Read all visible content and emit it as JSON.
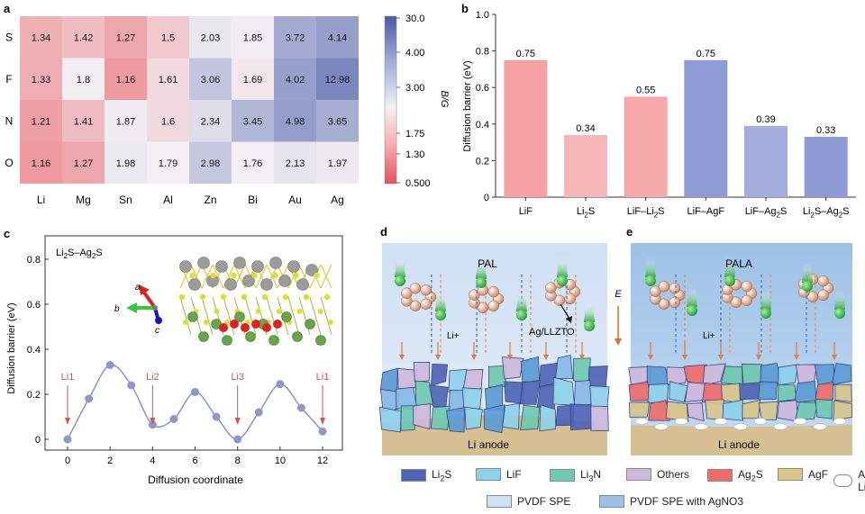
{
  "panels": {
    "a": {
      "letter": "a",
      "rows": [
        "S",
        "F",
        "N",
        "O"
      ],
      "cols": [
        "Li",
        "Mg",
        "Sn",
        "Al",
        "Zn",
        "Bi",
        "Au",
        "Ag"
      ],
      "values": [
        [
          "1.34",
          "1.42",
          "1.27",
          "1.5",
          "2.03",
          "1.85",
          "3.72",
          "4.14"
        ],
        [
          "1.33",
          "1.8",
          "1.16",
          "1.61",
          "3.06",
          "1.69",
          "4.02",
          "12.98"
        ],
        [
          "1.21",
          "1.41",
          "1.87",
          "1.6",
          "2.34",
          "3.45",
          "4.98",
          "3.65"
        ],
        [
          "1.16",
          "1.27",
          "1.98",
          "1.79",
          "2.98",
          "1.76",
          "2.13",
          "1.97"
        ]
      ],
      "colorbar_label": "B/G",
      "colorbar_ticks": [
        "30.0",
        "4.00",
        "3.00",
        "1.75",
        "1.30",
        "0.500"
      ],
      "colors": {
        "low": "#e8505b",
        "mid": "#f4f1f4",
        "high": "#4a5aa8"
      }
    },
    "b": {
      "letter": "b",
      "ylabel": "Diffusion barrier (eV)",
      "yticks": [
        "0",
        "0.2",
        "0.4",
        "0.6",
        "0.8",
        "1.0"
      ]
    },
    "c": {
      "letter": "c",
      "title": "Li2S–Ag2S",
      "xlabel": "Diffusion coordinate",
      "ylabel": "Diffusion barrier (eV)",
      "xticks": [
        "0",
        "2",
        "4",
        "6",
        "8",
        "10",
        "12"
      ],
      "yticks": [
        "0",
        "0.2",
        "0.4",
        "0.6",
        "0.8"
      ],
      "site_labels": [
        "Li1",
        "Li2",
        "Li3",
        "Li1"
      ],
      "axis_labels": {
        "a": "a",
        "b": "b",
        "c": "c"
      }
    },
    "d": {
      "letter": "d",
      "layer_label": "PAL",
      "field_label": "E",
      "li_label": "Li+",
      "particle_label": "Ag/LLZTO",
      "anode_label": "Li anode"
    },
    "e": {
      "letter": "e",
      "layer_label": "PALA",
      "li_label": "Li+",
      "anode_label": "Li anode"
    }
  },
  "chart_data": [
    {
      "type": "bar",
      "categories": [
        "LiF",
        "Li2S",
        "LiF–Li2S",
        "LiF–AgF",
        "LiF–Ag2S",
        "Li2S–Ag2S"
      ],
      "values": [
        0.75,
        0.34,
        0.55,
        0.75,
        0.39,
        0.33
      ],
      "value_labels": [
        "0.75",
        "0.34",
        "0.55",
        "0.75",
        "0.39",
        "0.33"
      ],
      "colors": [
        "#f6a1a3",
        "#f6b7b9",
        "#f5aaa9",
        "#8e9bd5",
        "#a4addb",
        "#8d9ad4"
      ],
      "title": "",
      "xlabel": "",
      "ylabel": "Diffusion barrier (eV)",
      "ylim": [
        0,
        1.0
      ]
    },
    {
      "type": "line",
      "x": [
        0,
        1,
        2,
        3,
        4,
        5,
        6,
        7,
        8,
        9,
        10,
        11,
        12
      ],
      "y": [
        0.0,
        0.18,
        0.33,
        0.24,
        0.065,
        0.09,
        0.21,
        0.1,
        0.0,
        0.12,
        0.245,
        0.14,
        0.035
      ],
      "xlabel": "Diffusion coordinate",
      "ylabel": "Diffusion barrier (eV)",
      "xlim": [
        0,
        12
      ],
      "ylim": [
        0,
        0.8
      ],
      "annotations": [
        {
          "text": "Li1",
          "x": 0
        },
        {
          "text": "Li2",
          "x": 4
        },
        {
          "text": "Li3",
          "x": 8
        },
        {
          "text": "Li1",
          "x": 12
        }
      ]
    }
  ],
  "legend": {
    "items": [
      {
        "label": "Li2S",
        "color": "#4f64b5"
      },
      {
        "label": "LiF",
        "color": "#8ed0ea"
      },
      {
        "label": "Li3N",
        "color": "#6fc8b0"
      },
      {
        "label": "Others",
        "color": "#cdb8dc"
      },
      {
        "label": "Ag2S",
        "color": "#ef6b6b"
      },
      {
        "label": "AgF",
        "color": "#d7c58a"
      },
      {
        "label": "Ag/Ag–Li",
        "color": "#ffffff"
      },
      {
        "label": "PVDF SPE",
        "color": "#cfe0f4"
      },
      {
        "label": "PVDF SPE with AgNO3",
        "color": "#9cc1e6"
      }
    ]
  }
}
